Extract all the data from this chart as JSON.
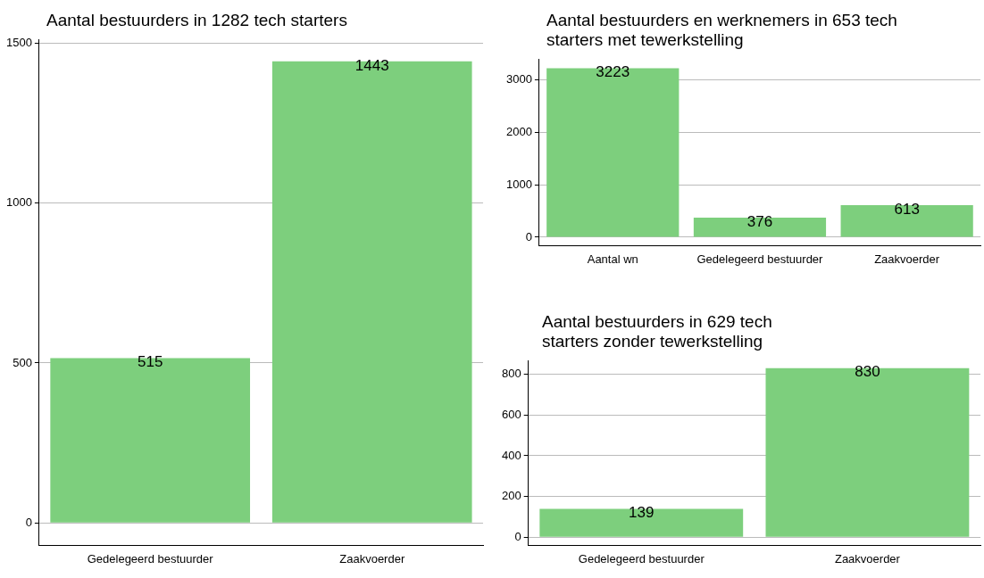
{
  "chart_data": [
    {
      "type": "bar",
      "title": "Aantal bestuurders in 1282 tech starters",
      "categories": [
        "Gedelegeerd bestuurder",
        "Zaakvoerder"
      ],
      "values": [
        515,
        1443
      ],
      "color": "#7dcf7d",
      "ylim": [
        -70,
        1510
      ],
      "yticks": [
        0,
        500,
        1000,
        1500
      ],
      "grid": "y",
      "data_labels": true
    },
    {
      "type": "bar",
      "title": "Aantal bestuurders en werknemers in 653 tech starters met tewerkstelling",
      "categories": [
        "Aantal wn",
        "Gedelegeerd bestuurder",
        "Zaakvoerder"
      ],
      "values": [
        3223,
        376,
        613
      ],
      "color": "#7dcf7d",
      "ylim": [
        -160,
        3390
      ],
      "yticks": [
        0,
        1000,
        2000,
        3000
      ],
      "grid": "y",
      "data_labels": true
    },
    {
      "type": "bar",
      "title": "Aantal bestuurders in 629 tech starters zonder tewerkstelling",
      "categories": [
        "Gedelegeerd bestuurder",
        "Zaakvoerder"
      ],
      "values": [
        139,
        830
      ],
      "color": "#7dcf7d",
      "ylim": [
        -40,
        865
      ],
      "yticks": [
        0,
        200,
        400,
        600,
        800
      ],
      "grid": "y",
      "data_labels": true
    }
  ]
}
